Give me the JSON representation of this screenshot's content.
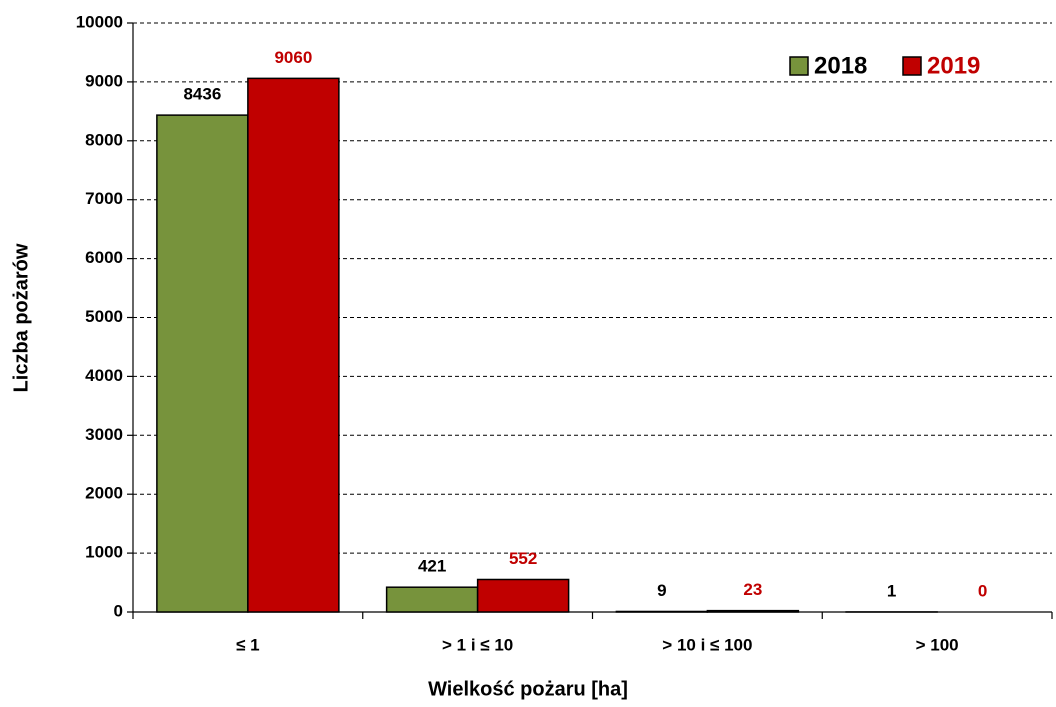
{
  "chart_data": {
    "type": "bar",
    "x_label": "Wielkość pożaru [ha]",
    "y_label": "Liczba pożarów",
    "categories": [
      "≤ 1",
      "> 1 i ≤ 10",
      "> 10 i ≤ 100",
      "> 100"
    ],
    "series": [
      {
        "name": "2018",
        "color": "#77933c",
        "label_color": "#000000",
        "values": [
          8436,
          421,
          9,
          1
        ]
      },
      {
        "name": "2019",
        "color": "#c00000",
        "label_color": "#c00000",
        "values": [
          9060,
          552,
          23,
          0
        ]
      }
    ],
    "ylim": [
      0,
      10000
    ],
    "yticks": [
      0,
      1000,
      2000,
      3000,
      4000,
      5000,
      6000,
      7000,
      8000,
      9000,
      10000
    ],
    "grid": true,
    "legend": "upper right"
  }
}
